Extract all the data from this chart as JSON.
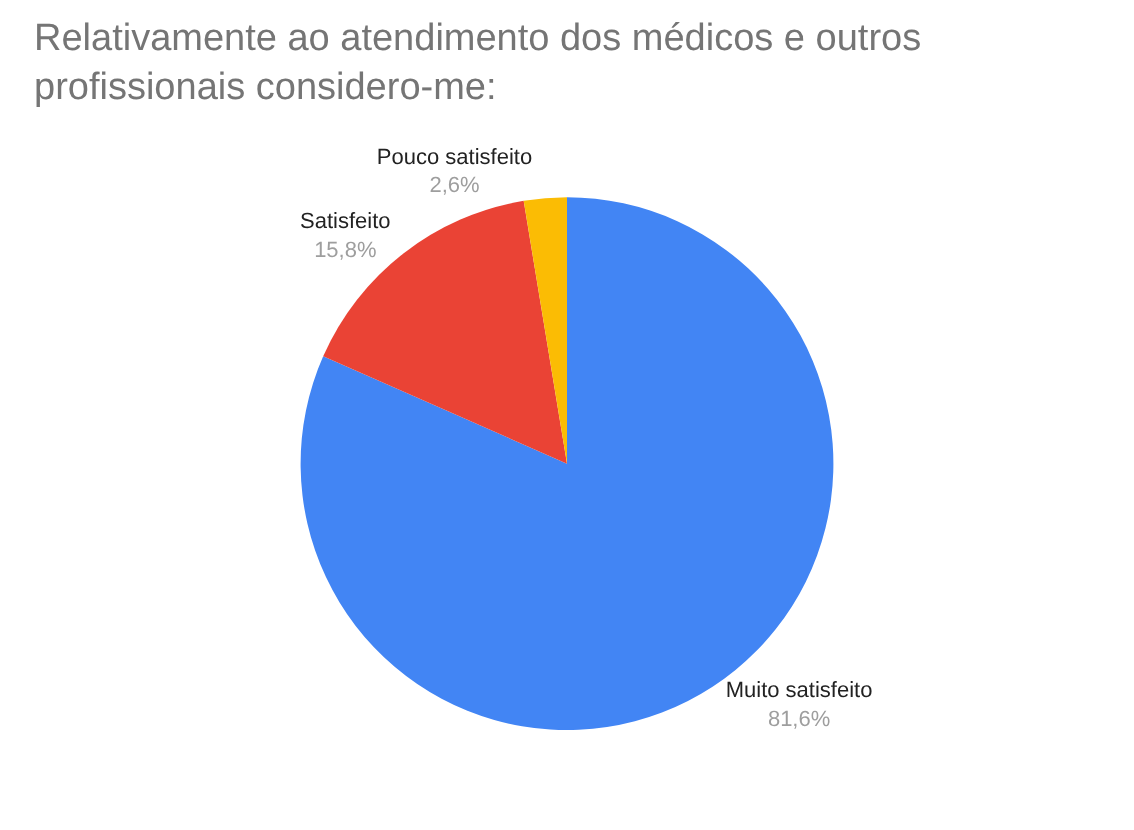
{
  "chart_data": {
    "type": "pie",
    "title": "Relativamente ao atendimento dos médicos e outros profissionais considero-me:",
    "categories": [
      "Muito satisfeito",
      "Satisfeito",
      "Pouco satisfeito"
    ],
    "values": [
      81.6,
      15.8,
      2.6
    ],
    "value_labels": [
      "81,6%",
      "15,8%",
      "2,6%"
    ],
    "colors": [
      "#4285f4",
      "#ea4335",
      "#fbbc04"
    ],
    "legend": false
  }
}
